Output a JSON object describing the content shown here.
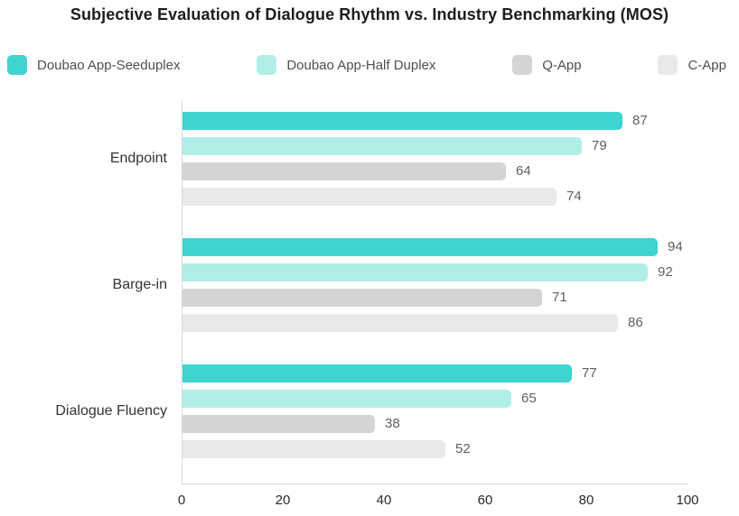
{
  "title": "Subjective Evaluation of Dialogue Rhythm vs. Industry Benchmarking (MOS)",
  "chart_data": {
    "type": "bar",
    "orientation": "horizontal",
    "title": "Subjective Evaluation of Dialogue Rhythm vs. Industry Benchmarking (MOS)",
    "categories": [
      "Endpoint",
      "Barge-in",
      "Dialogue Fluency"
    ],
    "series": [
      {
        "name": "Doubao App-Seeduplex",
        "color": "#3FD4D0",
        "values": [
          87,
          94,
          77
        ]
      },
      {
        "name": "Doubao App-Half Duplex",
        "color": "#B2EEE8",
        "values": [
          79,
          92,
          65
        ]
      },
      {
        "name": "Q-App",
        "color": "#D4D4D4",
        "values": [
          64,
          71,
          38
        ]
      },
      {
        "name": "C-App",
        "color": "#E9E9E9",
        "values": [
          74,
          86,
          52
        ]
      }
    ],
    "xlim": [
      0,
      100
    ],
    "x_ticks": [
      "0",
      "20",
      "40",
      "60",
      "80",
      "100"
    ],
    "value_labels_shown": true,
    "legend_position": "top",
    "grid": false,
    "axis_color": "#d9d9d9",
    "value_label_color": "#5f5f5f",
    "category_label_color": "#333333",
    "tick_label_color": "#2b2b2b",
    "title_color": "#1d1d1d",
    "legend_text_color": "#4f4f4f"
  }
}
